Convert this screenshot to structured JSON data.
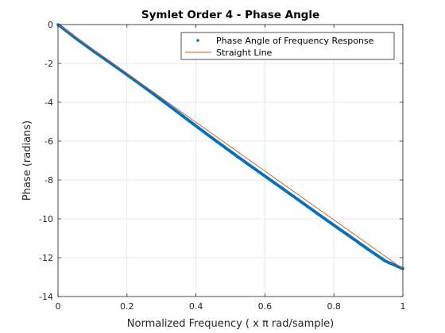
{
  "chart_data": {
    "type": "line",
    "title": "Symlet Order 4 - Phase Angle",
    "xlabel": "Normalized Frequency ( x π rad/sample)",
    "ylabel": "Phase (radians)",
    "xlim": [
      0,
      1
    ],
    "ylim": [
      -14,
      0
    ],
    "xticks": [
      0,
      0.2,
      0.4,
      0.6,
      0.8,
      1
    ],
    "xtick_labels": [
      "0",
      "0.2",
      "0.4",
      "0.6",
      "0.8",
      "1"
    ],
    "yticks": [
      0,
      -2,
      -4,
      -6,
      -8,
      -10,
      -12,
      -14
    ],
    "ytick_labels": [
      "0",
      "-2",
      "-4",
      "-6",
      "-8",
      "-10",
      "-12",
      "-14"
    ],
    "grid": true,
    "legend_position": "top-right",
    "series": [
      {
        "name": "Phase Angle of Frequency Response",
        "style": "markers",
        "color": "#0072BD",
        "x": [
          0,
          0.05,
          0.1,
          0.15,
          0.2,
          0.25,
          0.3,
          0.35,
          0.4,
          0.45,
          0.5,
          0.55,
          0.6,
          0.65,
          0.7,
          0.75,
          0.8,
          0.85,
          0.9,
          0.95,
          1
        ],
        "y": [
          0,
          -0.68,
          -1.33,
          -1.95,
          -2.58,
          -3.22,
          -3.88,
          -4.55,
          -5.22,
          -5.88,
          -6.53,
          -7.17,
          -7.8,
          -8.43,
          -9.06,
          -9.7,
          -10.33,
          -10.95,
          -11.58,
          -12.18,
          -12.57
        ]
      },
      {
        "name": "Straight Line",
        "style": "line",
        "color": "#D95319",
        "x": [
          0,
          1
        ],
        "y": [
          0,
          -12.57
        ]
      }
    ]
  }
}
